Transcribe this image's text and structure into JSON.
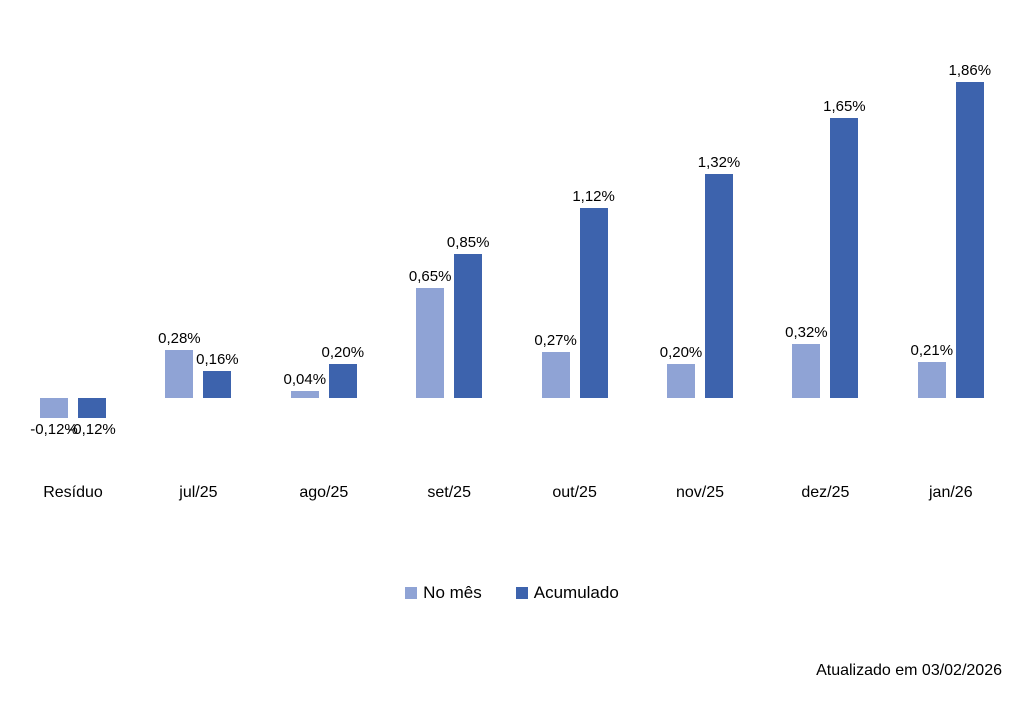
{
  "chart_data": {
    "type": "bar",
    "title": "",
    "xlabel": "",
    "ylabel": "",
    "categories": [
      "Resíduo",
      "jul/25",
      "ago/25",
      "set/25",
      "out/25",
      "nov/25",
      "dez/25",
      "jan/26"
    ],
    "series": [
      {
        "name": "No mês",
        "color": "#8FA3D5",
        "values": [
          -0.12,
          0.28,
          0.04,
          0.65,
          0.27,
          0.2,
          0.32,
          0.21
        ],
        "labels": [
          "-0,12%",
          "0,28%",
          "0,04%",
          "0,65%",
          "0,27%",
          "0,20%",
          "0,32%",
          "0,21%"
        ]
      },
      {
        "name": "Acumulado",
        "color": "#3D63AD",
        "values": [
          -0.12,
          0.16,
          0.2,
          0.85,
          1.12,
          1.32,
          1.65,
          1.86
        ],
        "labels": [
          "-0,12%",
          "0,16%",
          "0,20%",
          "0,85%",
          "1,12%",
          "1,32%",
          "1,65%",
          "1,86%"
        ]
      }
    ],
    "ylim": [
      -0.3,
      2.0
    ],
    "grid": false,
    "axes_visible": false,
    "data_labels": true,
    "legend_position": "bottom",
    "value_suffix": "%"
  },
  "footer": {
    "updated_text": "Atualizado em 03/02/2026"
  }
}
